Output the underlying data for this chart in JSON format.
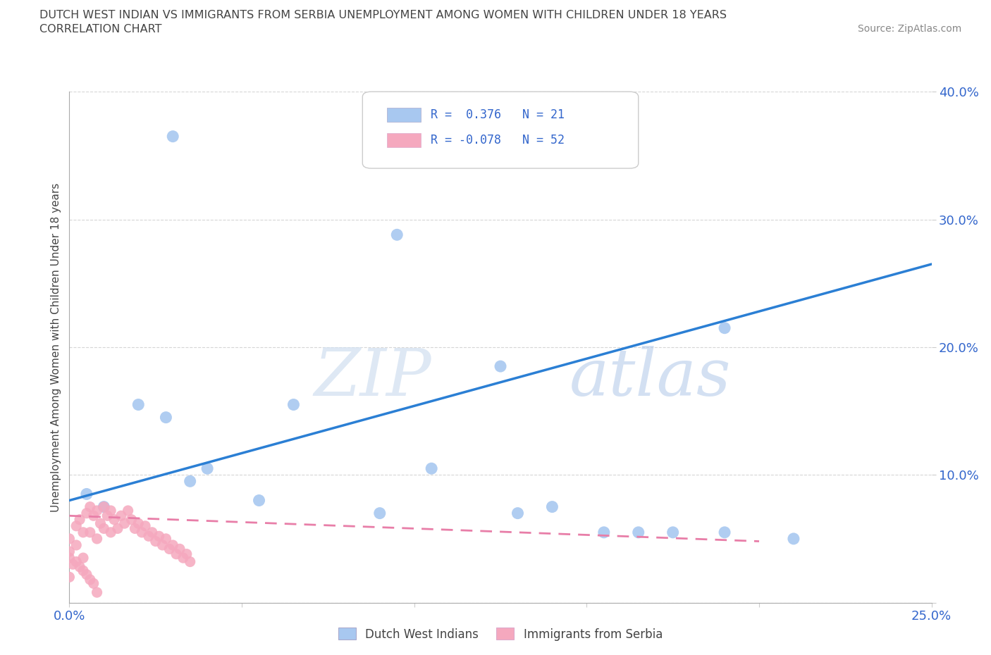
{
  "title_line1": "DUTCH WEST INDIAN VS IMMIGRANTS FROM SERBIA UNEMPLOYMENT AMONG WOMEN WITH CHILDREN UNDER 18 YEARS",
  "title_line2": "CORRELATION CHART",
  "source_text": "Source: ZipAtlas.com",
  "ylabel": "Unemployment Among Women with Children Under 18 years",
  "xlim": [
    0.0,
    0.25
  ],
  "ylim": [
    0.0,
    0.4
  ],
  "xticks": [
    0.0,
    0.05,
    0.1,
    0.15,
    0.2,
    0.25
  ],
  "yticks": [
    0.0,
    0.1,
    0.2,
    0.3,
    0.4
  ],
  "blue_scatter_x": [
    0.03,
    0.095,
    0.125,
    0.19,
    0.005,
    0.01,
    0.02,
    0.028,
    0.035,
    0.04,
    0.055,
    0.065,
    0.09,
    0.105,
    0.13,
    0.14,
    0.155,
    0.165,
    0.175,
    0.19,
    0.21
  ],
  "blue_scatter_y": [
    0.365,
    0.288,
    0.185,
    0.215,
    0.085,
    0.075,
    0.155,
    0.145,
    0.095,
    0.105,
    0.08,
    0.155,
    0.07,
    0.105,
    0.07,
    0.075,
    0.055,
    0.055,
    0.055,
    0.055,
    0.05
  ],
  "pink_scatter_x": [
    0.0,
    0.0,
    0.0,
    0.002,
    0.002,
    0.003,
    0.004,
    0.004,
    0.005,
    0.006,
    0.006,
    0.007,
    0.008,
    0.008,
    0.009,
    0.01,
    0.01,
    0.011,
    0.012,
    0.012,
    0.013,
    0.014,
    0.015,
    0.016,
    0.017,
    0.018,
    0.019,
    0.02,
    0.021,
    0.022,
    0.023,
    0.024,
    0.025,
    0.026,
    0.027,
    0.028,
    0.029,
    0.03,
    0.031,
    0.032,
    0.033,
    0.034,
    0.035,
    0.0,
    0.001,
    0.002,
    0.003,
    0.004,
    0.005,
    0.006,
    0.007,
    0.008
  ],
  "pink_scatter_y": [
    0.05,
    0.04,
    0.02,
    0.06,
    0.045,
    0.065,
    0.055,
    0.035,
    0.07,
    0.075,
    0.055,
    0.068,
    0.072,
    0.05,
    0.062,
    0.075,
    0.058,
    0.068,
    0.072,
    0.055,
    0.065,
    0.058,
    0.068,
    0.062,
    0.072,
    0.065,
    0.058,
    0.062,
    0.055,
    0.06,
    0.052,
    0.055,
    0.048,
    0.052,
    0.045,
    0.05,
    0.042,
    0.045,
    0.038,
    0.042,
    0.035,
    0.038,
    0.032,
    0.035,
    0.03,
    0.032,
    0.028,
    0.025,
    0.022,
    0.018,
    0.015,
    0.008
  ],
  "blue_line_x": [
    0.0,
    0.25
  ],
  "blue_line_y": [
    0.08,
    0.265
  ],
  "pink_line_x": [
    0.0,
    0.2
  ],
  "pink_line_y": [
    0.068,
    0.048
  ],
  "blue_color": "#A8C8F0",
  "pink_color": "#F5A8BE",
  "blue_scatter_edge": "#A8C8F0",
  "pink_scatter_edge": "#F5A8BE",
  "blue_line_color": "#2B7FD4",
  "pink_line_color": "#E87EA8",
  "R_blue": 0.376,
  "N_blue": 21,
  "R_pink": -0.078,
  "N_pink": 52,
  "watermark_zip": "ZIP",
  "watermark_atlas": "atlas",
  "legend1_label": "Dutch West Indians",
  "legend2_label": "Immigrants from Serbia",
  "background_color": "#FFFFFF",
  "grid_color": "#CCCCCC",
  "tick_color": "#3366CC",
  "title_color": "#444444",
  "ylabel_color": "#444444"
}
